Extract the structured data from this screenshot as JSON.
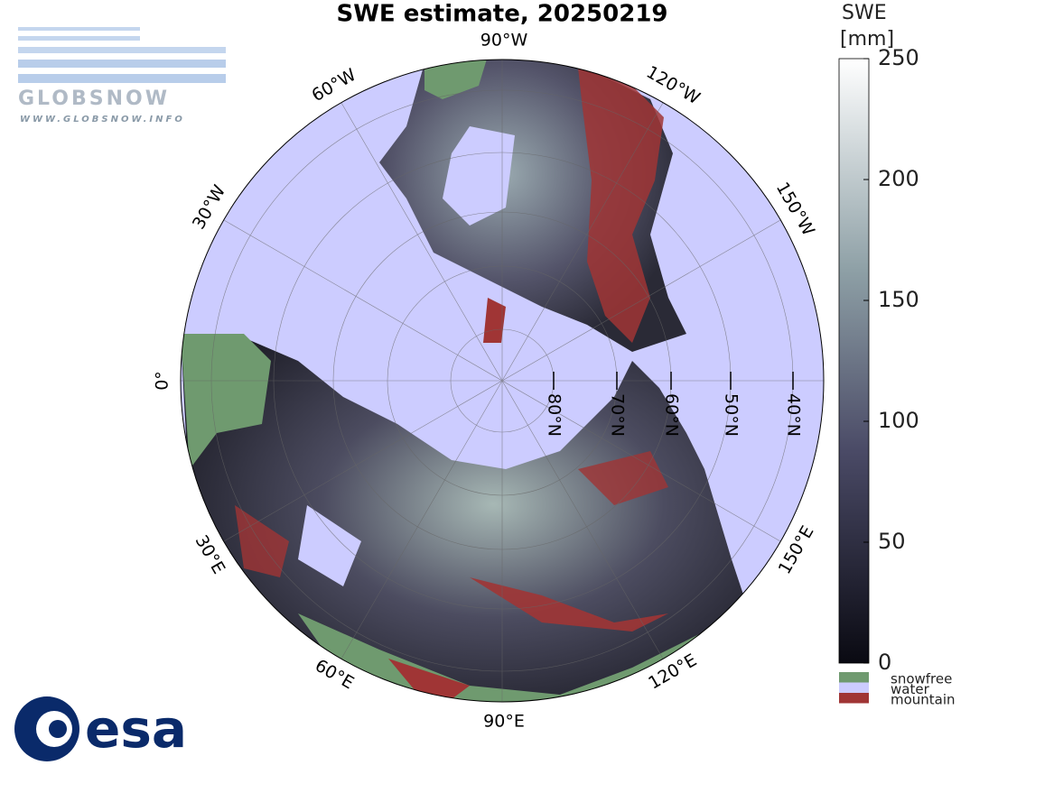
{
  "title": "SWE estimate, 20250219",
  "logos": {
    "globsnow": "GLOBSNOW",
    "globsnow_url": "WWW.GLOBSNOW.INFO",
    "esa": "esa"
  },
  "map": {
    "longitude_labels": [
      "90°W",
      "120°W",
      "150°W",
      "30°E",
      "60°E",
      "90°E",
      "120°E",
      "150°E",
      "60°W",
      "30°W",
      "0°"
    ],
    "latitude_labels": [
      "80°N",
      "70°N",
      "60°N",
      "50°N",
      "40°N"
    ]
  },
  "colorbar": {
    "label_line1": "SWE",
    "label_line2": "[mm]",
    "lim": [
      0,
      250
    ],
    "ticks": [
      0,
      50,
      100,
      150,
      200,
      250
    ]
  },
  "legend": [
    {
      "name": "snowfree",
      "color": "#6f9a6f"
    },
    {
      "name": "water",
      "color": "#ccccff"
    },
    {
      "name": "mountain",
      "color": "#a03535"
    }
  ]
}
